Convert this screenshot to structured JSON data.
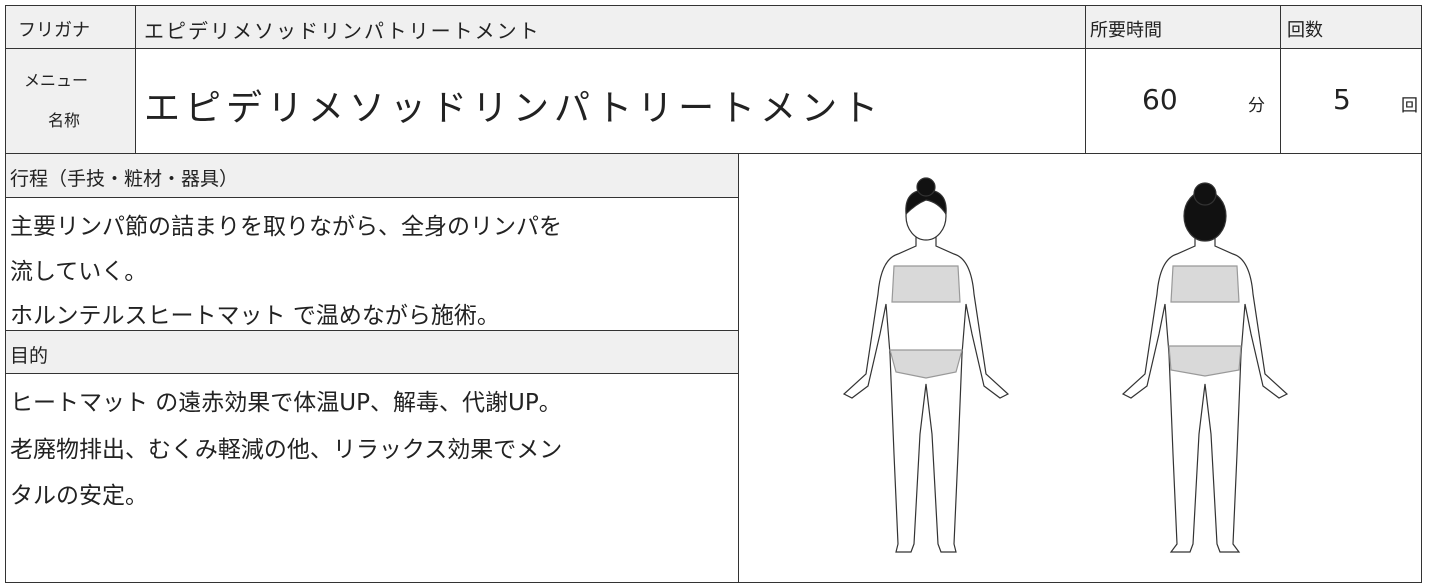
{
  "header": {
    "furigana_label": "フリガナ",
    "furigana": "エピデリメソッドリンパトリートメント",
    "time_label": "所要時間",
    "count_label": "回数"
  },
  "menu": {
    "label": [
      "メニュー",
      "名称"
    ],
    "name": "エピデリメソッドリンパトリートメント",
    "time": 60,
    "time_unit": "分",
    "count": 5,
    "count_unit": "回"
  },
  "process": {
    "heading": "行程（手技・粧材・器具）",
    "lines": [
      "主要リンパ節の詰まりを取りながら、全身のリンパを",
      "流していく。",
      "ホルンテルスヒートマット で温めながら施術。"
    ]
  },
  "purpose": {
    "heading": "目的",
    "lines": [
      "ヒートマット の遠赤効果で体温UP、解毒、代謝UP。",
      "老廃物排出、むくみ軽減の他、リラックス効果でメン",
      "タルの安定。"
    ]
  }
}
